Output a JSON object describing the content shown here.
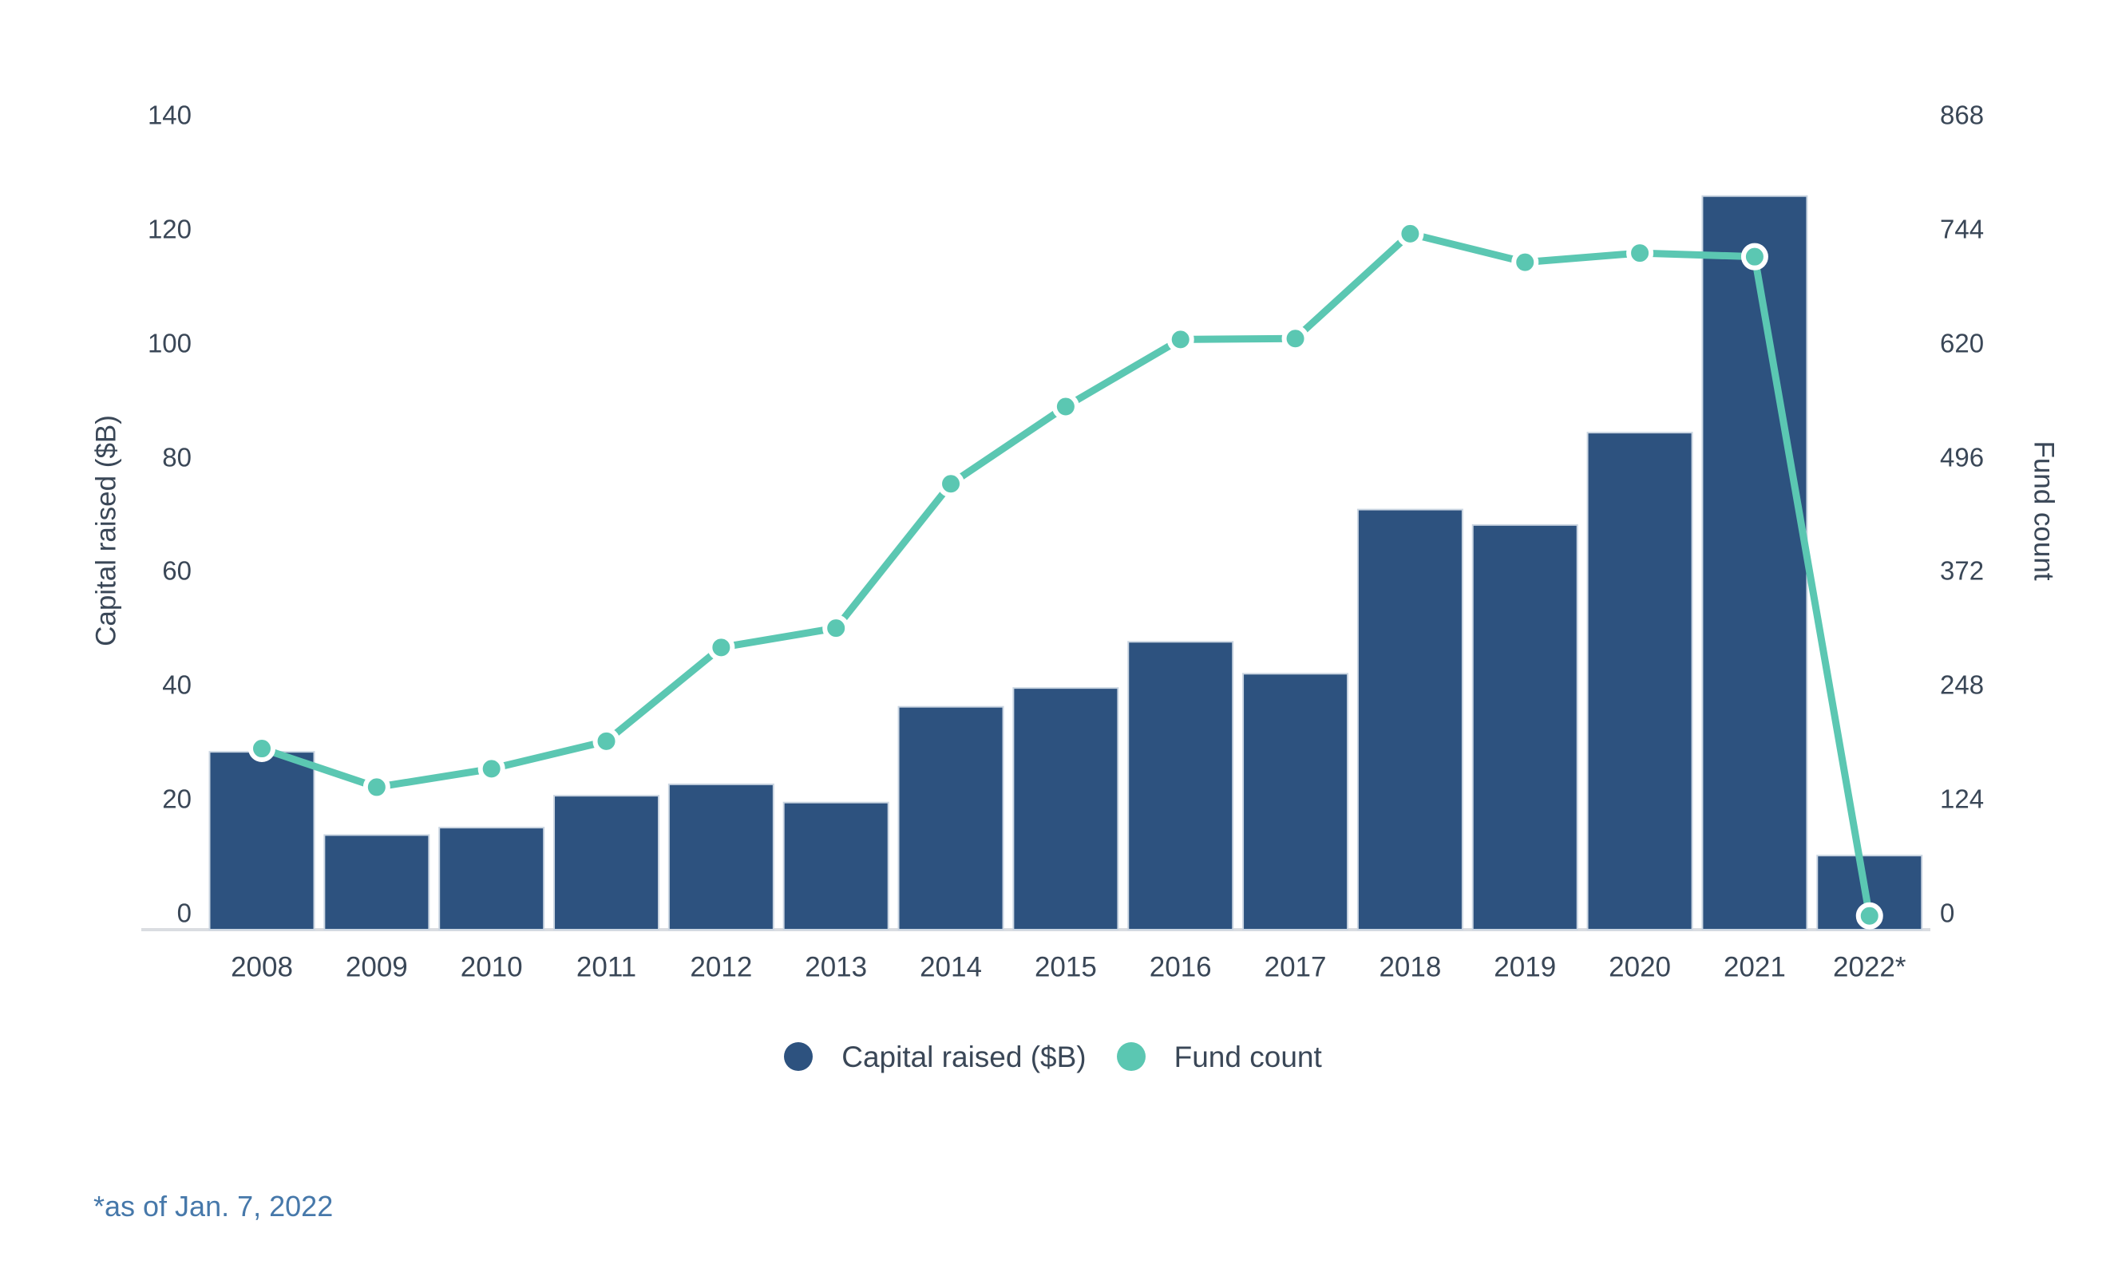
{
  "chart_data": {
    "type": "bar",
    "subtype": "bar-line-combo-dual-axis",
    "categories": [
      "2008",
      "2009",
      "2010",
      "2011",
      "2012",
      "2013",
      "2014",
      "2015",
      "2016",
      "2017",
      "2018",
      "2019",
      "2020",
      "2021",
      "2022*"
    ],
    "series": [
      {
        "name": "Capital raised ($B)",
        "type": "bar",
        "axis": "left",
        "color": "#2D527F",
        "values": [
          31.2,
          16.6,
          17.9,
          23.5,
          25.5,
          22.3,
          39.1,
          42.4,
          50.5,
          44.9,
          73.7,
          71.0,
          87.2,
          128.7,
          13.0
        ]
      },
      {
        "name": "Fund count",
        "type": "line",
        "axis": "right",
        "color": "#5BC7B2",
        "values": [
          197,
          155,
          175,
          205,
          307,
          328,
          485,
          569,
          642,
          643,
          757,
          726,
          736,
          732,
          15
        ]
      }
    ],
    "left_axis": {
      "label": "Capital raised ($B)",
      "min": 0,
      "max": 140,
      "tick_step": 20,
      "ticks": [
        0,
        20,
        40,
        60,
        80,
        100,
        120,
        140
      ]
    },
    "right_axis": {
      "label": "Fund count",
      "min": 0,
      "max": 868,
      "tick_step": 124,
      "ticks": [
        0,
        124,
        248,
        372,
        496,
        620,
        744,
        868
      ]
    },
    "grid": false,
    "legend_position": "bottom",
    "footnote": "*as of Jan. 7, 2022"
  },
  "legend": {
    "items": [
      {
        "label": "Capital raised ($B)",
        "color": "#2D527F"
      },
      {
        "label": "Fund count",
        "color": "#5BC7B2"
      }
    ]
  },
  "colors": {
    "bar": "#2D527F",
    "bar_edge": "#CBD6E2",
    "line": "#5BC7B2",
    "marker_ring": "#FFFFFF",
    "axis_line": "#DADDE1",
    "tick_text": "#3A4757",
    "footnote_text": "#4678AA",
    "background": "#FFFFFF"
  }
}
